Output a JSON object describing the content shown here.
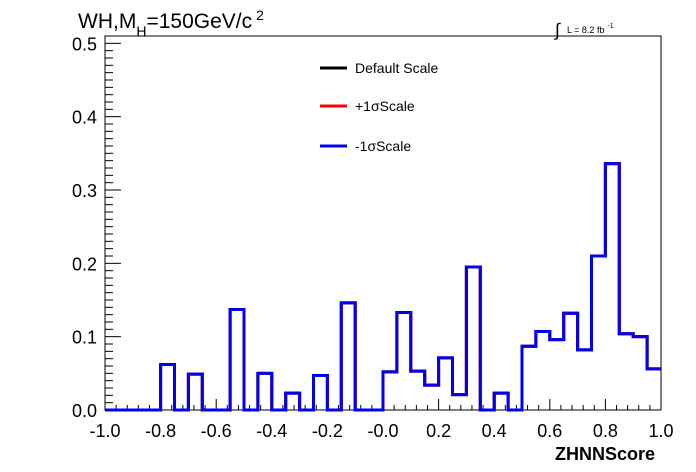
{
  "chart_data": {
    "type": "histogram",
    "title_main": "WH,M",
    "title_sub": "H",
    "title_rest": "=150GeV/c",
    "title_sup": "2",
    "lumi_integral": "∫",
    "lumi_text": "L = 8.2 fb",
    "lumi_sup": "-1",
    "xlabel": "ZHNNScore",
    "ylabel": "",
    "xlim": [
      -1.0,
      1.0
    ],
    "ylim": [
      0.0,
      0.51
    ],
    "x_ticks": [
      "-1.0",
      "-0.8",
      "-0.6",
      "-0.4",
      "-0.2",
      "-0.0",
      "0.2",
      "0.4",
      "0.6",
      "0.8",
      "1.0"
    ],
    "y_ticks": [
      "0.0",
      "0.1",
      "0.2",
      "0.3",
      "0.4",
      "0.5"
    ],
    "grid": false,
    "legend_position": "top-center",
    "bin_edges_range": [
      -1.0,
      1.0
    ],
    "n_bins": 40,
    "series": [
      {
        "name": "Default Scale",
        "color": "#000000",
        "values": [
          0,
          0,
          0,
          0,
          0.062,
          0,
          0.049,
          0,
          0,
          0.137,
          0,
          0.05,
          0,
          0.023,
          0,
          0.047,
          0,
          0.146,
          0,
          0,
          0.052,
          0.133,
          0.053,
          0.034,
          0.071,
          0.021,
          0.195,
          0,
          0.023,
          0,
          0.087,
          0.107,
          0.096,
          0.132,
          0.082,
          0.21,
          0.336,
          0.104,
          0.1,
          0.056
        ]
      },
      {
        "name": "+1σScale",
        "color": "#ff0000",
        "values": [
          0,
          0,
          0,
          0,
          0.062,
          0,
          0.049,
          0,
          0,
          0.137,
          0,
          0.05,
          0,
          0.023,
          0,
          0.047,
          0,
          0.146,
          0,
          0,
          0.052,
          0.133,
          0.053,
          0.034,
          0.071,
          0.021,
          0.195,
          0,
          0.023,
          0,
          0.087,
          0.107,
          0.096,
          0.132,
          0.082,
          0.21,
          0.336,
          0.104,
          0.1,
          0.056
        ]
      },
      {
        "name": "-1σScale",
        "color": "#0000ee",
        "values": [
          0,
          0,
          0,
          0,
          0.062,
          0,
          0.049,
          0,
          0,
          0.137,
          0,
          0.05,
          0,
          0.023,
          0,
          0.047,
          0,
          0.146,
          0,
          0,
          0.052,
          0.133,
          0.053,
          0.034,
          0.071,
          0.021,
          0.195,
          0,
          0.023,
          0,
          0.087,
          0.107,
          0.096,
          0.132,
          0.082,
          0.21,
          0.336,
          0.104,
          0.1,
          0.056
        ]
      }
    ]
  }
}
